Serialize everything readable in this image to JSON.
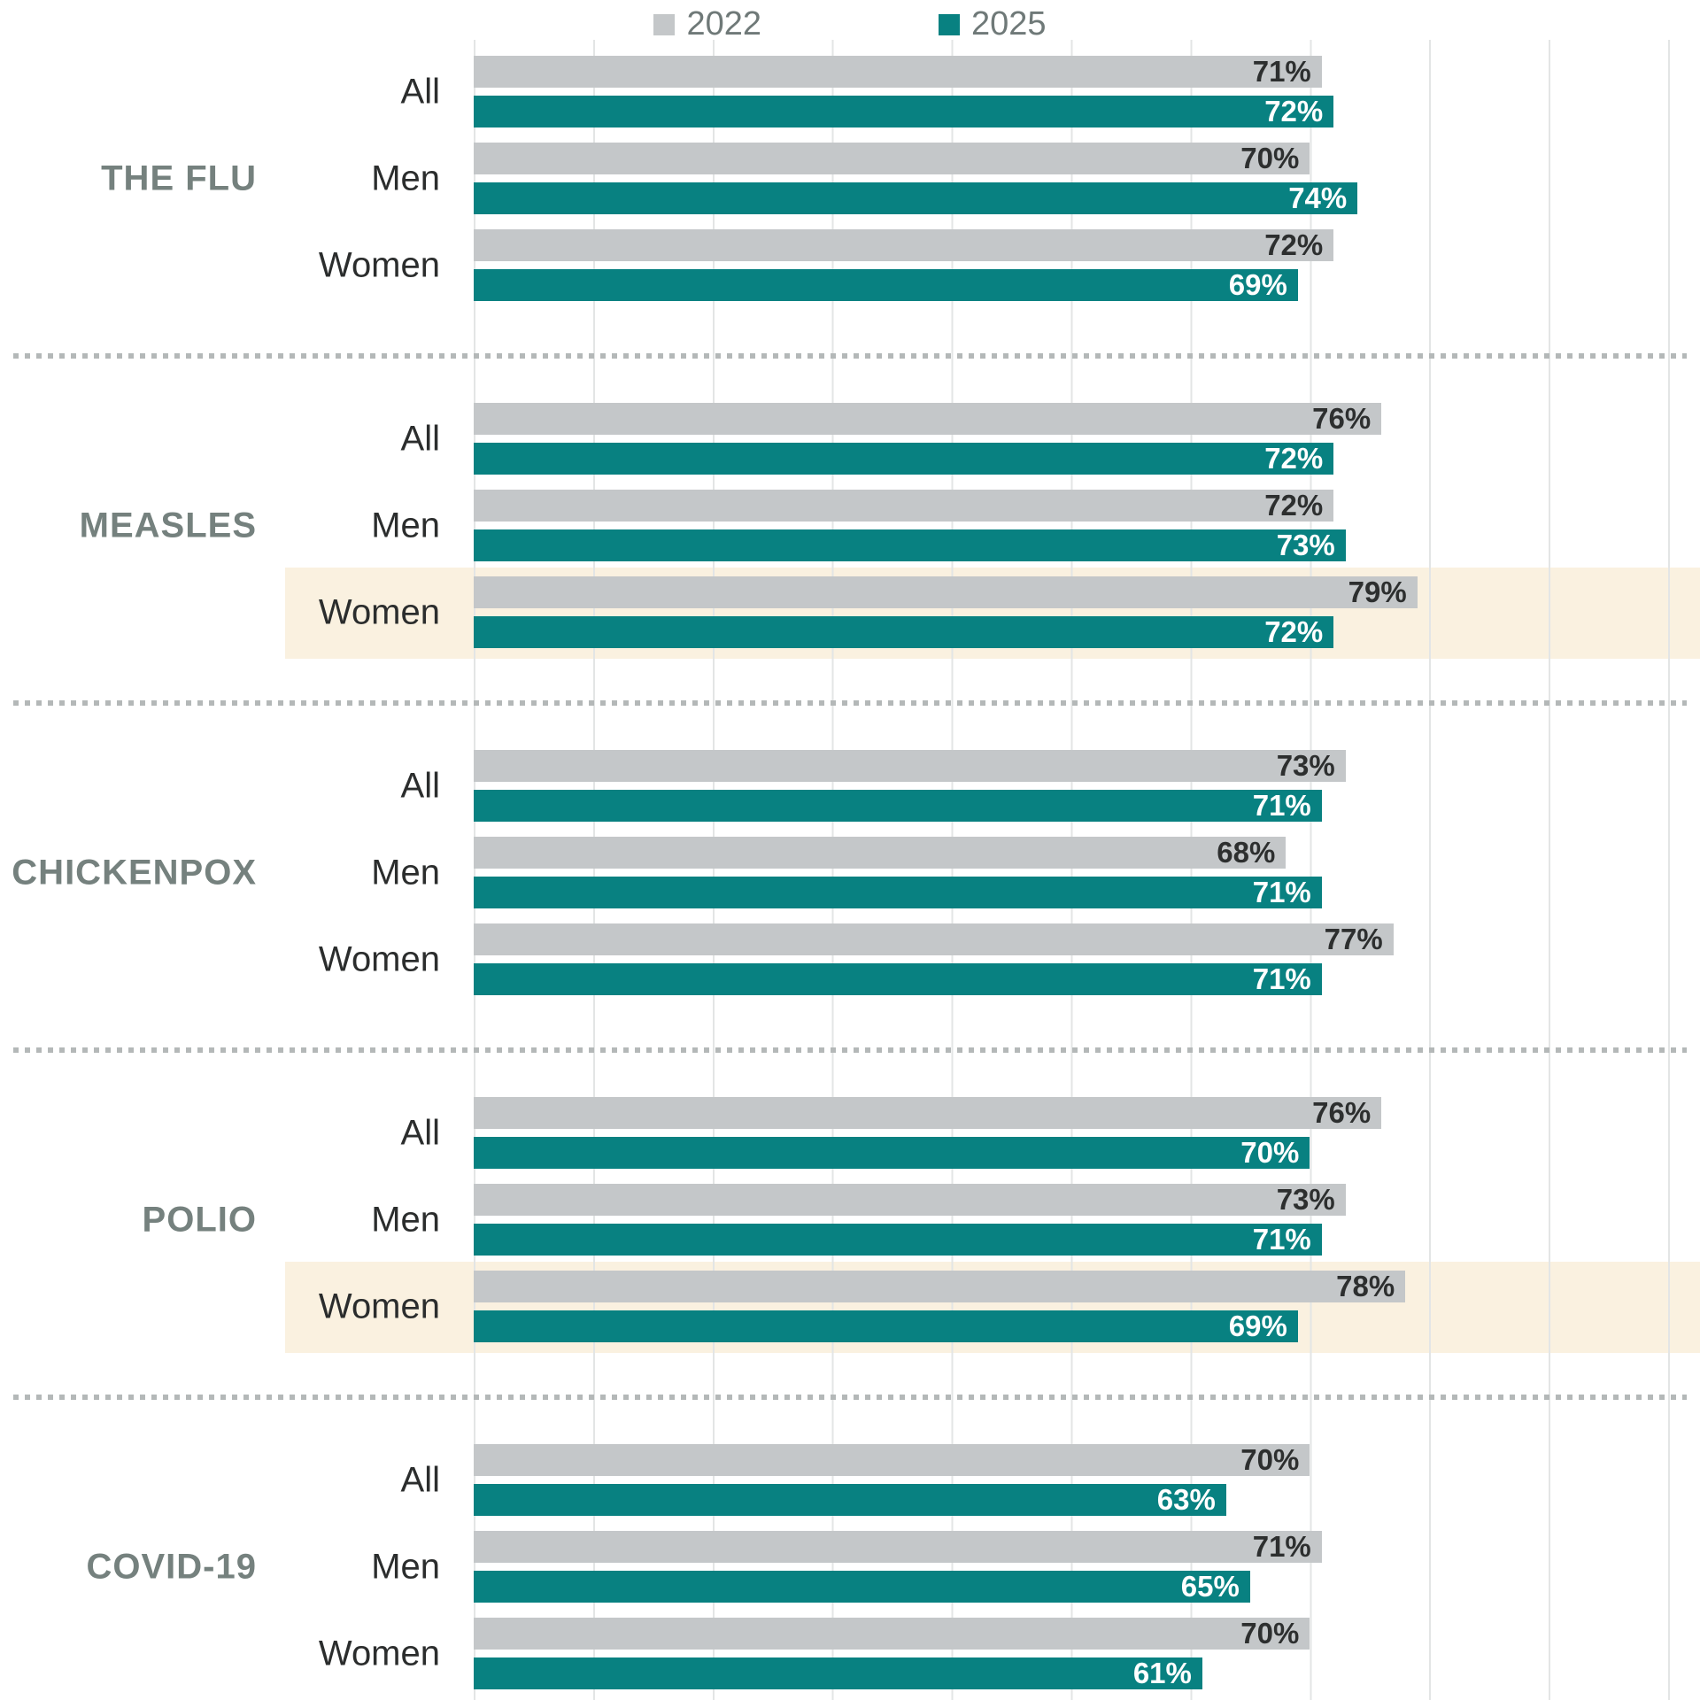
{
  "legend": {
    "items": [
      {
        "label": "2022",
        "color": "#c4c7c9"
      },
      {
        "label": "2025",
        "color": "#088181"
      }
    ]
  },
  "colors": {
    "bar_2022": "#c4c7c9",
    "bar_2025": "#088181",
    "value_label_on_2022": "#2d2f2f",
    "value_label_on_2025": "#ffffff",
    "section_label": "#75817e",
    "row_label": "#2b2d2d",
    "legend_text": "#6f7978",
    "highlight_band": "#faf1e0",
    "gridline": "#e3e5e5",
    "divider_dots": "#b4b8b8",
    "background": "#ffffff"
  },
  "chart_data": {
    "type": "bar",
    "orientation": "horizontal",
    "unit": "percent",
    "series": [
      "2022",
      "2025"
    ],
    "xlim": [
      0,
      100
    ],
    "gridline_step_percent": 10,
    "grid": true,
    "legend_position": "top-center",
    "value_label_format": "{value}%",
    "sections": [
      {
        "label": "THE FLU",
        "rows": [
          {
            "label": "All",
            "values": {
              "2022": 71,
              "2025": 72
            },
            "highlighted": false
          },
          {
            "label": "Men",
            "values": {
              "2022": 70,
              "2025": 74
            },
            "highlighted": false
          },
          {
            "label": "Women",
            "values": {
              "2022": 72,
              "2025": 69
            },
            "highlighted": false
          }
        ]
      },
      {
        "label": "MEASLES",
        "rows": [
          {
            "label": "All",
            "values": {
              "2022": 76,
              "2025": 72
            },
            "highlighted": false
          },
          {
            "label": "Men",
            "values": {
              "2022": 72,
              "2025": 73
            },
            "highlighted": false
          },
          {
            "label": "Women",
            "values": {
              "2022": 79,
              "2025": 72
            },
            "highlighted": true
          }
        ]
      },
      {
        "label": "CHICKENPOX",
        "rows": [
          {
            "label": "All",
            "values": {
              "2022": 73,
              "2025": 71
            },
            "highlighted": false
          },
          {
            "label": "Men",
            "values": {
              "2022": 68,
              "2025": 71
            },
            "highlighted": false
          },
          {
            "label": "Women",
            "values": {
              "2022": 77,
              "2025": 71
            },
            "highlighted": false
          }
        ]
      },
      {
        "label": "POLIO",
        "rows": [
          {
            "label": "All",
            "values": {
              "2022": 76,
              "2025": 70
            },
            "highlighted": false
          },
          {
            "label": "Men",
            "values": {
              "2022": 73,
              "2025": 71
            },
            "highlighted": false
          },
          {
            "label": "Women",
            "values": {
              "2022": 78,
              "2025": 69
            },
            "highlighted": true
          }
        ]
      },
      {
        "label": "COVID-19",
        "rows": [
          {
            "label": "All",
            "values": {
              "2022": 70,
              "2025": 63
            },
            "highlighted": false
          },
          {
            "label": "Men",
            "values": {
              "2022": 71,
              "2025": 65
            },
            "highlighted": false
          },
          {
            "label": "Women",
            "values": {
              "2022": 70,
              "2025": 61
            },
            "highlighted": false
          }
        ]
      }
    ]
  }
}
